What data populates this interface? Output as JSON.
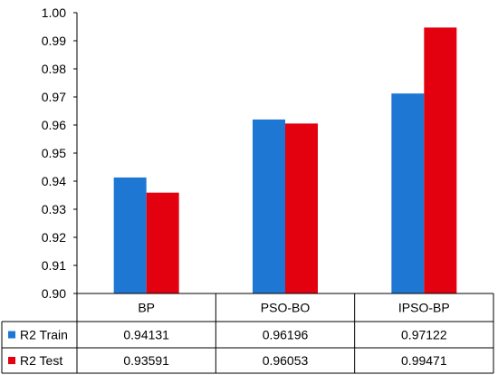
{
  "chart_data": {
    "type": "bar",
    "categories": [
      "BP",
      "PSO-BO",
      "IPSO-BP"
    ],
    "series": [
      {
        "name": "R2 Train",
        "values": [
          0.94131,
          0.96196,
          0.97122
        ],
        "color": "#1f77d4"
      },
      {
        "name": "R2 Test",
        "values": [
          0.93591,
          0.96053,
          0.99471
        ],
        "color": "#e3000f"
      }
    ],
    "table_values": [
      [
        "0.94131",
        "0.96196",
        "0.97122"
      ],
      [
        "0.93591",
        "0.96053",
        "0.99471"
      ]
    ],
    "yticks": [
      "0.90",
      "0.91",
      "0.92",
      "0.93",
      "0.94",
      "0.95",
      "0.96",
      "0.97",
      "0.98",
      "0.99",
      "1.00"
    ],
    "ylim": [
      0.9,
      1.0
    ],
    "legend_placement": "data-table",
    "grid": false
  }
}
